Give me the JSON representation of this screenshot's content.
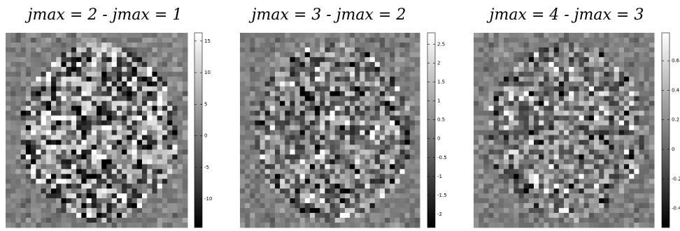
{
  "chart_data": [
    {
      "type": "heatmap",
      "title": "jmax = 2 - jmax = 1",
      "colormap": "gray",
      "clim": [
        -14.5,
        16.3
      ],
      "cticks": [
        -10,
        -5,
        0,
        5,
        10,
        15
      ]
    },
    {
      "type": "heatmap",
      "title": "jmax = 3 - jmax = 2",
      "colormap": "gray",
      "clim": [
        -2.35,
        2.8
      ],
      "cticks": [
        -2,
        -1.5,
        -1,
        -0.5,
        0,
        0.5,
        1,
        1.5,
        2,
        2.5
      ]
    },
    {
      "type": "heatmap",
      "title": "jmax = 4 - jmax = 3",
      "colormap": "gray",
      "clim": [
        -0.53,
        0.79
      ],
      "cticks": [
        -0.4,
        -0.2,
        0,
        0.2,
        0.4,
        0.6
      ]
    }
  ]
}
